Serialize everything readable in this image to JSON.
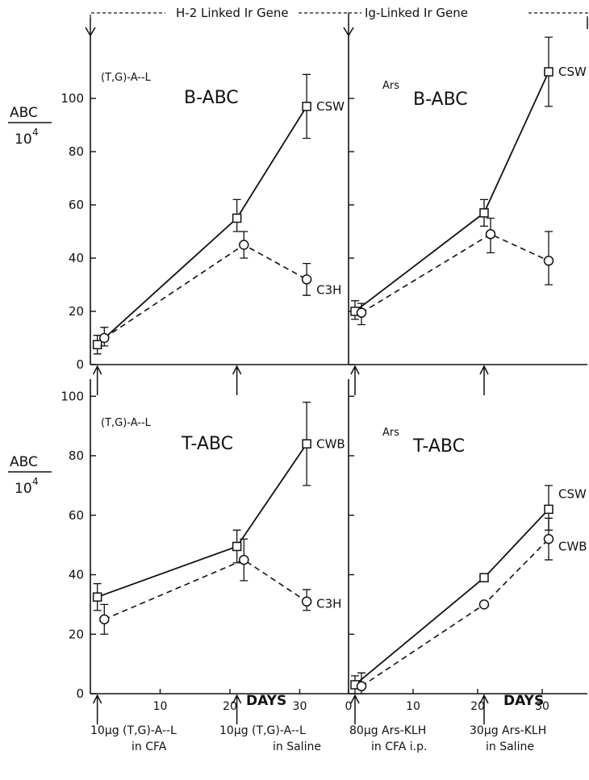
{
  "header": {
    "left": "H-2 Linked Ir Gene",
    "right": "Ig-Linked Ir Gene"
  },
  "ylabel_num": "ABC",
  "ylabel_den_base": "10",
  "ylabel_den_exp": "4",
  "xlabel": "DAYS",
  "annotations": {
    "left_1": "10μg (T,G)-A--L",
    "left_1b": "in CFA",
    "left_2": "10μg (T,G)-A--L",
    "left_2b": "in Saline",
    "right_1": "80μg Ars-KLH",
    "right_1b": "in CFA i.p.",
    "right_2": "30μg Ars-KLH",
    "right_2b": "in Saline"
  },
  "chart_data": [
    {
      "type": "line",
      "panel": "top-left",
      "antigen": "(T,G)-A--L",
      "title": "B-ABC",
      "xlim": [
        0,
        37
      ],
      "ylim": [
        0,
        110
      ],
      "yticks": [
        0,
        20,
        40,
        60,
        80,
        100
      ],
      "ytick_labels": [
        "0",
        "20",
        "40",
        "60",
        "80",
        "100"
      ],
      "xticks": [],
      "xtick_labels": [],
      "series": [
        {
          "name": "CSW",
          "style": "solid",
          "marker": "square",
          "x": [
            1,
            21,
            31
          ],
          "y": [
            7.5,
            55,
            97
          ],
          "err": [
            [
              4,
              11
            ],
            [
              50,
              62
            ],
            [
              85,
              109
            ]
          ]
        },
        {
          "name": "C3H",
          "style": "dashed",
          "marker": "circle",
          "x": [
            2,
            22,
            31
          ],
          "y": [
            10,
            45,
            32
          ],
          "err": [
            [
              7,
              14
            ],
            [
              40,
              50
            ],
            [
              26,
              38
            ]
          ]
        }
      ]
    },
    {
      "type": "line",
      "panel": "top-right",
      "antigen": "Ars",
      "title": "B-ABC",
      "xlim": [
        0,
        37
      ],
      "ylim": [
        0,
        110
      ],
      "yticks": [
        0,
        20,
        40,
        60,
        80,
        100
      ],
      "ytick_labels": [],
      "xticks": [],
      "xtick_labels": [],
      "series": [
        {
          "name": "CSW",
          "style": "solid",
          "marker": "square",
          "x": [
            1,
            21,
            31
          ],
          "y": [
            20,
            57,
            110
          ],
          "err": [
            [
              17,
              24
            ],
            [
              52,
              62
            ],
            [
              97,
              123
            ]
          ]
        },
        {
          "name": "",
          "style": "dashed",
          "marker": "circle",
          "x": [
            2,
            22,
            31
          ],
          "y": [
            19.5,
            49,
            39
          ],
          "err": [
            [
              15,
              23
            ],
            [
              42,
              55
            ],
            [
              30,
              50
            ]
          ]
        }
      ]
    },
    {
      "type": "line",
      "panel": "bottom-left",
      "antigen": "(T,G)-A--L",
      "title": "T-ABC",
      "xlim": [
        0,
        37
      ],
      "ylim": [
        0,
        110
      ],
      "yticks": [
        0,
        20,
        40,
        60,
        80,
        100
      ],
      "ytick_labels": [
        "0",
        "20",
        "40",
        "60",
        "80",
        "100"
      ],
      "xticks": [
        10,
        20,
        30
      ],
      "xtick_labels": [
        "10",
        "20",
        "30"
      ],
      "series": [
        {
          "name": "CWB",
          "style": "solid",
          "marker": "square",
          "x": [
            1,
            21,
            31
          ],
          "y": [
            32.5,
            49.5,
            84
          ],
          "err": [
            [
              28,
              37
            ],
            [
              44,
              55
            ],
            [
              70,
              98
            ]
          ]
        },
        {
          "name": "C3H",
          "style": "dashed",
          "marker": "circle",
          "x": [
            2,
            22,
            31
          ],
          "y": [
            25,
            45,
            31
          ],
          "err": [
            [
              20,
              30
            ],
            [
              38,
              52
            ],
            [
              28,
              35
            ]
          ]
        }
      ]
    },
    {
      "type": "line",
      "panel": "bottom-right",
      "antigen": "Ars",
      "title": "T-ABC",
      "xlim": [
        0,
        37
      ],
      "ylim": [
        0,
        110
      ],
      "yticks": [
        0,
        20,
        40,
        60,
        80,
        100
      ],
      "ytick_labels": [],
      "xticks": [
        0,
        10,
        20,
        30
      ],
      "xtick_labels": [
        "0",
        "10",
        "20",
        "30"
      ],
      "series": [
        {
          "name": "CSW",
          "style": "solid",
          "marker": "square",
          "x": [
            1,
            21,
            31
          ],
          "y": [
            3,
            39,
            62
          ],
          "err": [
            [
              0,
              6
            ],
            [],
            [
              55,
              70
            ]
          ]
        },
        {
          "name": "CWB",
          "style": "dashed",
          "marker": "circle",
          "x": [
            2,
            21,
            31
          ],
          "y": [
            2.5,
            30,
            52
          ],
          "err": [
            [
              0,
              7
            ],
            [],
            [
              45,
              59
            ]
          ]
        }
      ]
    }
  ]
}
